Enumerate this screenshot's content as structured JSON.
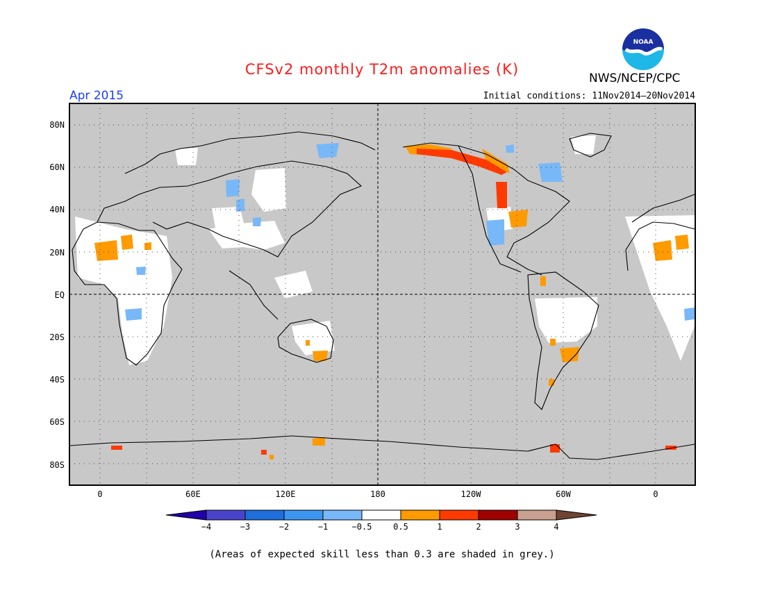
{
  "header": {
    "title": "CFSv2 monthly T2m anomalies (K)",
    "agency": "NWS/NCEP/CPC",
    "month": "Apr 2015",
    "initial_conditions": "Initial conditions: 11Nov2014–20Nov2014",
    "logo_text": "NOAA"
  },
  "map": {
    "lat_labels": [
      "80N",
      "60N",
      "40N",
      "20N",
      "EQ",
      "20S",
      "40S",
      "60S",
      "80S"
    ],
    "lon_labels": [
      "0",
      "60E",
      "120E",
      "180",
      "120W",
      "60W",
      "0"
    ],
    "background_color": "#c8c8c8"
  },
  "colorbar": {
    "tick_labels": [
      "−4",
      "−3",
      "−2",
      "−1",
      "−0.5",
      "0.5",
      "1",
      "2",
      "3",
      "4"
    ],
    "colors": [
      "#2200aa",
      "#4a44cc",
      "#1e6fdc",
      "#3c96f0",
      "#78b8f8",
      "#ffffff",
      "#ff9a00",
      "#ff3a00",
      "#a00000",
      "#c8a090",
      "#6e4432"
    ]
  },
  "footnote": "(Areas of expected skill less than 0.3 are shaded in grey.)"
}
